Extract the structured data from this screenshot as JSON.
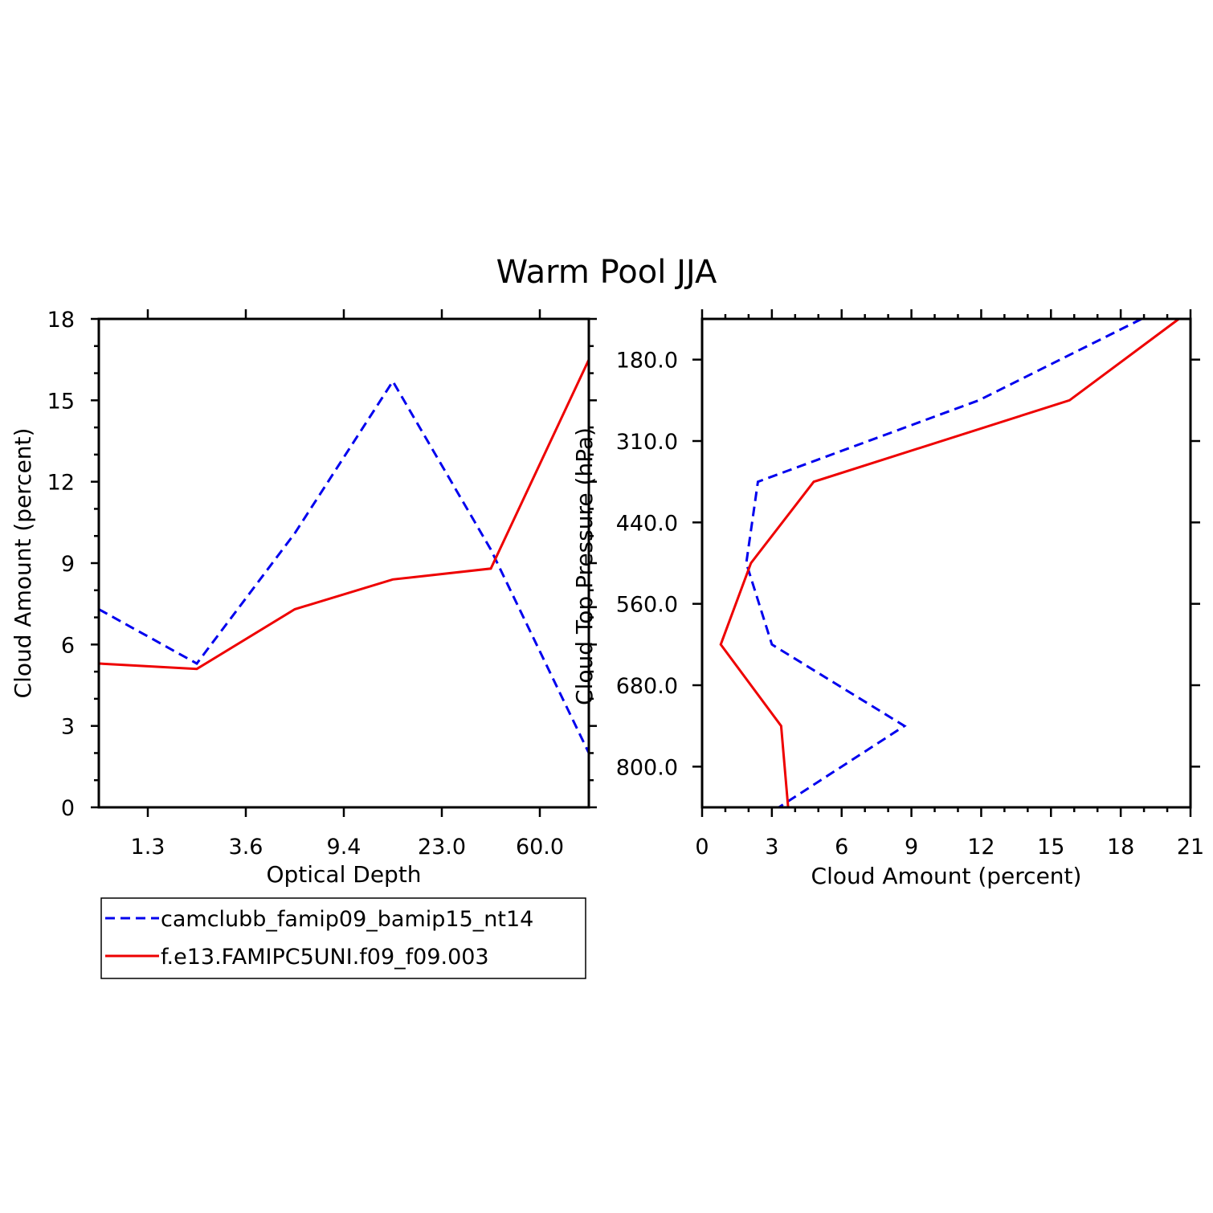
{
  "title": "Warm Pool JJA",
  "colors": {
    "series_a": "#0000ee",
    "series_b": "#ee0000",
    "axes": "#000000"
  },
  "chart_data": [
    {
      "type": "line",
      "xlabel": "Optical Depth",
      "ylabel": "Cloud Amount (percent)",
      "xtick_labels": [
        "1.3",
        "3.6",
        "9.4",
        "23.0",
        "60.0"
      ],
      "ylim": [
        0,
        18
      ],
      "yticks": [
        0,
        3,
        6,
        9,
        12,
        15,
        18
      ],
      "grid": false,
      "series": [
        {
          "name": "camclubb_famip09_bamip15_nt14",
          "style": "dashed",
          "x": [
            0.5,
            1.5,
            2.5,
            3.5,
            4.5,
            5.5
          ],
          "values": [
            7.3,
            5.3,
            10.1,
            15.7,
            9.5,
            2.0
          ]
        },
        {
          "name": "f.e13.FAMIPC5UNI.f09_f09.003",
          "style": "solid",
          "x": [
            0.5,
            1.5,
            2.5,
            3.5,
            4.5,
            5.5
          ],
          "values": [
            5.3,
            5.1,
            7.3,
            8.4,
            8.8,
            16.5
          ]
        }
      ]
    },
    {
      "type": "line",
      "xlabel": "Cloud Amount (percent)",
      "ylabel": "Cloud Top Pressure (hPa)",
      "xlim": [
        0,
        21
      ],
      "xticks": [
        0,
        3,
        6,
        9,
        12,
        15,
        18,
        21
      ],
      "ytick_labels": [
        "180.0",
        "310.0",
        "440.0",
        "560.0",
        "680.0",
        "800.0"
      ],
      "grid": false,
      "series": [
        {
          "name": "camclubb_famip09_bamip15_nt14",
          "style": "dashed",
          "y": [
            0,
            1,
            2,
            3,
            4,
            5,
            6
          ],
          "values": [
            18.9,
            11.9,
            2.4,
            1.9,
            3.0,
            8.7,
            3.3
          ]
        },
        {
          "name": "f.e13.FAMIPC5UNI.f09_f09.003",
          "style": "solid",
          "y": [
            0,
            1,
            2,
            3,
            4,
            5,
            6
          ],
          "values": [
            20.5,
            15.8,
            4.8,
            2.1,
            0.8,
            3.4,
            3.7
          ]
        }
      ]
    }
  ],
  "legend": {
    "position": "below-left",
    "entries": [
      "camclubb_famip09_bamip15_nt14",
      "f.e13.FAMIPC5UNI.f09_f09.003"
    ]
  }
}
